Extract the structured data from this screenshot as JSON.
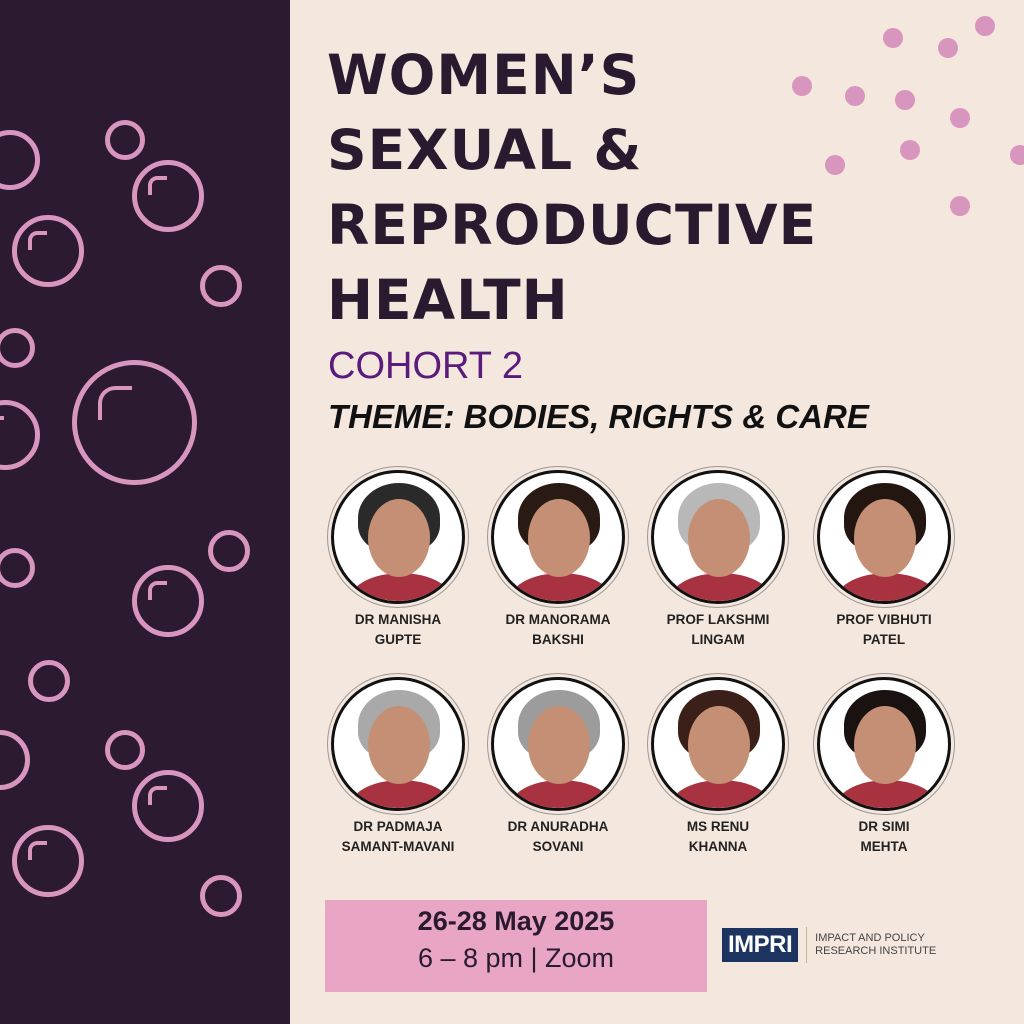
{
  "title_lines": [
    "WOMEN’S",
    "SEXUAL &",
    "REPRODUCTIVE",
    "HEALTH"
  ],
  "cohort": "COHORT 2",
  "theme": "THEME: BODIES, RIGHTS & CARE",
  "speakers": [
    {
      "line1": "DR MANISHA",
      "line2": "GUPTE"
    },
    {
      "line1": "DR MANORAMA",
      "line2": "BAKSHI"
    },
    {
      "line1": "PROF LAKSHMI",
      "line2": "LINGAM"
    },
    {
      "line1": "PROF VIBHUTI",
      "line2": "PATEL"
    },
    {
      "line1": "DR PADMAJA",
      "line2": "SAMANT-MAVANI"
    },
    {
      "line1": "DR ANURADHA",
      "line2": "SOVANI"
    },
    {
      "line1": "MS RENU",
      "line2": "KHANNA"
    },
    {
      "line1": "DR SIMI",
      "line2": "MEHTA"
    }
  ],
  "event": {
    "date": "26-28 May 2025",
    "time": "6 – 8 pm | Zoom"
  },
  "logo": {
    "mark": "IMPRI",
    "line1": "IMPACT AND POLICY",
    "line2": "RESEARCH INSTITUTE"
  },
  "colors": {
    "left_panel": "#2b1a30",
    "background": "#f4e7dd",
    "accent_pink": "#d895bd",
    "cohort_purple": "#5b1b7c",
    "date_box": "#e8a6c4",
    "logo_navy": "#1d3461"
  }
}
